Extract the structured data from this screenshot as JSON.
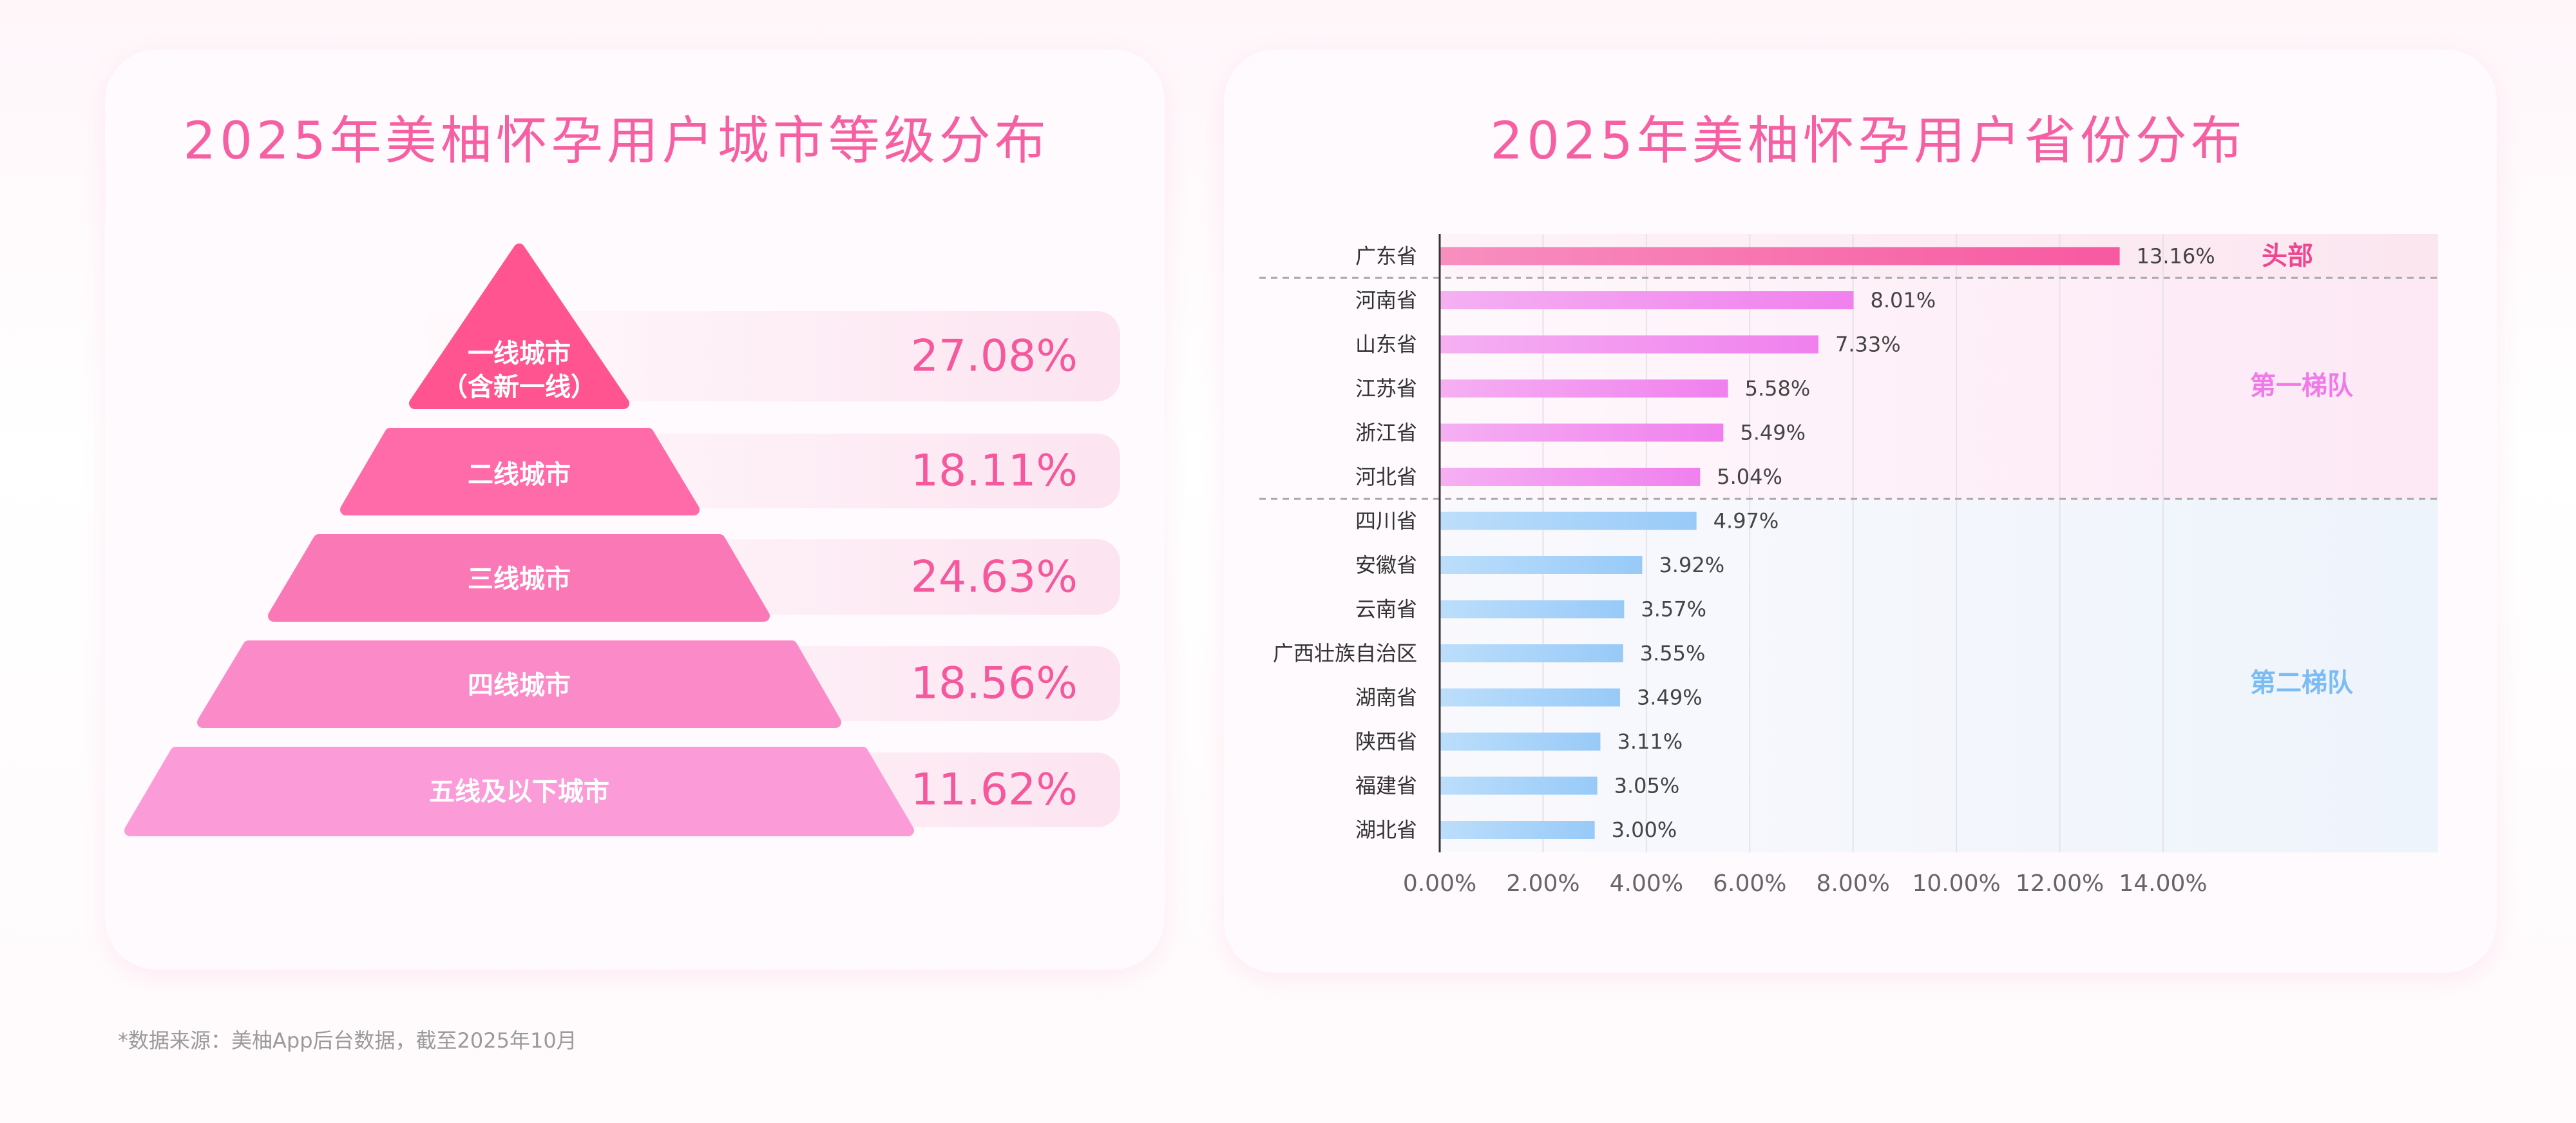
{
  "left_panel": {
    "title": "2025年美柚怀孕用户城市等级分布",
    "tiers": [
      {
        "label_line1": "一线城市",
        "label_line2": "（含新一线）",
        "percent": "27.08%",
        "color": "#ff548f"
      },
      {
        "label_line1": "二线城市",
        "label_line2": "",
        "percent": "18.11%",
        "color": "#ff6aa8"
      },
      {
        "label_line1": "三线城市",
        "label_line2": "",
        "percent": "24.63%",
        "color": "#fb78b6"
      },
      {
        "label_line1": "四线城市",
        "label_line2": "",
        "percent": "18.56%",
        "color": "#fb8bc8"
      },
      {
        "label_line1": "五线及以下城市",
        "label_line2": "",
        "percent": "11.62%",
        "color": "#fb9cd9"
      }
    ]
  },
  "right_panel": {
    "title": "2025年美柚怀孕用户省份分布",
    "groups": [
      {
        "label": "头部",
        "color": "#f0458f"
      },
      {
        "label": "第一梯队",
        "color": "#f07ae8"
      },
      {
        "label": "第二梯队",
        "color": "#7cbcf5"
      }
    ]
  },
  "chart_data": {
    "type": "bar",
    "orientation": "horizontal",
    "categories": [
      "广东省",
      "河南省",
      "山东省",
      "江苏省",
      "浙江省",
      "河北省",
      "四川省",
      "安徽省",
      "云南省",
      "广西壮族自治区",
      "湖南省",
      "陕西省",
      "福建省",
      "湖北省"
    ],
    "values": [
      13.16,
      8.01,
      7.33,
      5.58,
      5.49,
      5.04,
      4.97,
      3.92,
      3.57,
      3.55,
      3.49,
      3.11,
      3.05,
      3.0
    ],
    "value_labels": [
      "13.16%",
      "8.01%",
      "7.33%",
      "5.58%",
      "5.49%",
      "5.04%",
      "4.97%",
      "3.92%",
      "3.57%",
      "3.55%",
      "3.49%",
      "3.11%",
      "3.05%",
      "3.00%"
    ],
    "group_of_category": [
      0,
      1,
      1,
      1,
      1,
      1,
      2,
      2,
      2,
      2,
      2,
      2,
      2,
      2
    ],
    "xlim": [
      0,
      14
    ],
    "xticks": [
      "0.00%",
      "2.00%",
      "4.00%",
      "6.00%",
      "8.00%",
      "10.00%",
      "12.00%",
      "14.00%"
    ],
    "grid": true,
    "group_colors": [
      [
        "#f78fbf",
        "#f759a0"
      ],
      [
        "#f5b0f2",
        "#f080ee"
      ],
      [
        "#bcdefb",
        "#98caf8"
      ]
    ]
  },
  "footnote": "*数据来源：美柚App后台数据，截至2025年10月"
}
